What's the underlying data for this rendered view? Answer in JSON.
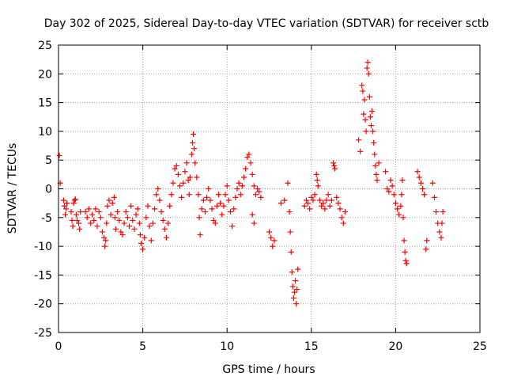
{
  "chart_data": {
    "type": "scatter",
    "title": "Day 302 of 2025, Sidereal Day-to-day VTEC variation (SDTVAR) for receiver sctb",
    "xlabel": "GPS time / hours",
    "ylabel": "SDTVAR / TECUs",
    "xlim": [
      0,
      25
    ],
    "ylim": [
      -25,
      25
    ],
    "xticks": [
      0,
      5,
      10,
      15,
      20,
      25
    ],
    "yticks": [
      -25,
      -20,
      -15,
      -10,
      -5,
      0,
      5,
      10,
      15,
      20,
      25
    ],
    "grid": true,
    "marker": "+",
    "color": "#ff0000",
    "series": [
      {
        "name": "SDTVAR",
        "points": [
          [
            0.05,
            5.8
          ],
          [
            0.1,
            1.0
          ],
          [
            0.3,
            -2.0
          ],
          [
            0.35,
            -3.0
          ],
          [
            0.4,
            -4.5
          ],
          [
            0.45,
            -3.5
          ],
          [
            0.5,
            -2.5
          ],
          [
            0.75,
            -4.0
          ],
          [
            0.8,
            -5.5
          ],
          [
            0.85,
            -6.5
          ],
          [
            0.9,
            -2.5
          ],
          [
            0.95,
            -2.0
          ],
          [
            1.0,
            -1.8
          ],
          [
            1.05,
            -4.5
          ],
          [
            1.1,
            -5.5
          ],
          [
            1.2,
            -6.0
          ],
          [
            1.25,
            -7.0
          ],
          [
            1.3,
            -4.0
          ],
          [
            1.6,
            -4.0
          ],
          [
            1.7,
            -5.0
          ],
          [
            1.8,
            -3.5
          ],
          [
            1.9,
            -6.0
          ],
          [
            2.0,
            -4.5
          ],
          [
            2.1,
            -5.5
          ],
          [
            2.2,
            -3.5
          ],
          [
            2.3,
            -6.5
          ],
          [
            2.4,
            -4.0
          ],
          [
            2.5,
            -5.0
          ],
          [
            2.6,
            -7.5
          ],
          [
            2.7,
            -8.5
          ],
          [
            2.75,
            -10.0
          ],
          [
            2.8,
            -9.0
          ],
          [
            2.85,
            -6.0
          ],
          [
            2.9,
            -3.0
          ],
          [
            3.0,
            -2.0
          ],
          [
            3.1,
            -4.5
          ],
          [
            3.2,
            -2.5
          ],
          [
            3.3,
            -1.5
          ],
          [
            3.35,
            -5.0
          ],
          [
            3.4,
            -7.0
          ],
          [
            3.5,
            -4.0
          ],
          [
            3.6,
            -5.5
          ],
          [
            3.7,
            -7.5
          ],
          [
            3.8,
            -8.0
          ],
          [
            3.9,
            -6.0
          ],
          [
            4.0,
            -4.0
          ],
          [
            4.1,
            -5.0
          ],
          [
            4.2,
            -6.5
          ],
          [
            4.3,
            -3.0
          ],
          [
            4.4,
            -5.5
          ],
          [
            4.5,
            -7.0
          ],
          [
            4.6,
            -4.5
          ],
          [
            4.7,
            -3.5
          ],
          [
            4.8,
            -6.0
          ],
          [
            4.85,
            -8.0
          ],
          [
            4.9,
            -9.5
          ],
          [
            5.0,
            -10.5
          ],
          [
            5.1,
            -8.5
          ],
          [
            5.2,
            -5.0
          ],
          [
            5.3,
            -3.0
          ],
          [
            5.4,
            -6.5
          ],
          [
            5.5,
            -9.0
          ],
          [
            5.6,
            -6.0
          ],
          [
            5.7,
            -3.5
          ],
          [
            5.8,
            -1.0
          ],
          [
            5.9,
            0.0
          ],
          [
            6.0,
            -2.0
          ],
          [
            6.1,
            -4.0
          ],
          [
            6.2,
            -5.5
          ],
          [
            6.3,
            -7.0
          ],
          [
            6.4,
            -8.5
          ],
          [
            6.5,
            -6.0
          ],
          [
            6.6,
            -3.0
          ],
          [
            6.7,
            -1.0
          ],
          [
            6.8,
            1.0
          ],
          [
            6.9,
            3.5
          ],
          [
            7.0,
            4.0
          ],
          [
            7.1,
            2.5
          ],
          [
            7.2,
            0.5
          ],
          [
            7.3,
            -1.5
          ],
          [
            7.4,
            1.0
          ],
          [
            7.5,
            3.0
          ],
          [
            7.6,
            4.5
          ],
          [
            7.7,
            1.5
          ],
          [
            7.75,
            -1.0
          ],
          [
            7.8,
            2.0
          ],
          [
            7.9,
            6.0
          ],
          [
            7.95,
            8.0
          ],
          [
            8.0,
            9.5
          ],
          [
            8.05,
            7.0
          ],
          [
            8.1,
            4.5
          ],
          [
            8.2,
            2.0
          ],
          [
            8.3,
            -1.0
          ],
          [
            8.35,
            -5.0
          ],
          [
            8.4,
            -8.0
          ],
          [
            8.5,
            -3.5
          ],
          [
            8.6,
            -2.0
          ],
          [
            8.7,
            -4.0
          ],
          [
            8.8,
            -1.5
          ],
          [
            8.9,
            0.0
          ],
          [
            9.0,
            -2.0
          ],
          [
            9.1,
            -3.5
          ],
          [
            9.2,
            -5.5
          ],
          [
            9.3,
            -6.0
          ],
          [
            9.4,
            -3.0
          ],
          [
            9.5,
            -1.0
          ],
          [
            9.6,
            -2.5
          ],
          [
            9.7,
            -4.5
          ],
          [
            9.8,
            -3.0
          ],
          [
            9.9,
            -1.0
          ],
          [
            10.0,
            0.5
          ],
          [
            10.1,
            -2.0
          ],
          [
            10.2,
            -4.0
          ],
          [
            10.3,
            -6.5
          ],
          [
            10.4,
            -3.5
          ],
          [
            10.5,
            -1.5
          ],
          [
            10.6,
            0.0
          ],
          [
            10.7,
            1.0
          ],
          [
            10.8,
            -1.0
          ],
          [
            10.9,
            0.5
          ],
          [
            11.0,
            2.0
          ],
          [
            11.1,
            3.5
          ],
          [
            11.2,
            5.5
          ],
          [
            11.3,
            6.0
          ],
          [
            11.4,
            4.5
          ],
          [
            11.5,
            2.5
          ],
          [
            11.6,
            0.5
          ],
          [
            11.7,
            -1.0
          ],
          [
            11.8,
            0.0
          ],
          [
            11.9,
            -0.5
          ],
          [
            12.0,
            -1.5
          ],
          [
            11.5,
            -4.5
          ],
          [
            11.6,
            -6.0
          ],
          [
            12.5,
            -7.5
          ],
          [
            12.6,
            -8.5
          ],
          [
            12.7,
            -10.0
          ],
          [
            12.8,
            -9.0
          ],
          [
            13.2,
            -2.5
          ],
          [
            13.4,
            -2.0
          ],
          [
            13.6,
            1.0
          ],
          [
            13.7,
            -4.0
          ],
          [
            13.75,
            -7.5
          ],
          [
            13.8,
            -11.0
          ],
          [
            13.85,
            -14.5
          ],
          [
            13.9,
            -17.0
          ],
          [
            13.95,
            -19.0
          ],
          [
            14.0,
            -18.0
          ],
          [
            14.05,
            -16.0
          ],
          [
            14.1,
            -20.0
          ],
          [
            14.15,
            -17.5
          ],
          [
            14.2,
            -14.0
          ],
          [
            14.6,
            -3.0
          ],
          [
            14.7,
            -2.0
          ],
          [
            14.8,
            -2.5
          ],
          [
            14.9,
            -3.5
          ],
          [
            15.0,
            -1.5
          ],
          [
            15.1,
            -2.0
          ],
          [
            15.2,
            -1.0
          ],
          [
            15.3,
            2.5
          ],
          [
            15.35,
            1.5
          ],
          [
            15.4,
            0.5
          ],
          [
            15.5,
            -2.0
          ],
          [
            15.6,
            -3.0
          ],
          [
            15.7,
            -2.5
          ],
          [
            15.8,
            -3.5
          ],
          [
            15.9,
            -2.0
          ],
          [
            16.0,
            -1.0
          ],
          [
            16.1,
            -3.0
          ],
          [
            16.2,
            -2.0
          ],
          [
            16.3,
            4.5
          ],
          [
            16.35,
            4.0
          ],
          [
            16.4,
            3.5
          ],
          [
            16.5,
            -1.5
          ],
          [
            16.6,
            -2.5
          ],
          [
            16.7,
            -3.5
          ],
          [
            16.8,
            -5.0
          ],
          [
            16.9,
            -6.0
          ],
          [
            17.0,
            -4.0
          ],
          [
            17.8,
            8.5
          ],
          [
            17.9,
            6.5
          ],
          [
            18.0,
            18.0
          ],
          [
            18.05,
            17.0
          ],
          [
            18.1,
            13.0
          ],
          [
            18.15,
            15.5
          ],
          [
            18.2,
            12.0
          ],
          [
            18.25,
            10.0
          ],
          [
            18.3,
            21.0
          ],
          [
            18.35,
            22.0
          ],
          [
            18.4,
            20.0
          ],
          [
            18.45,
            16.0
          ],
          [
            18.5,
            12.5
          ],
          [
            18.55,
            11.0
          ],
          [
            18.6,
            13.5
          ],
          [
            18.65,
            10.0
          ],
          [
            18.7,
            8.0
          ],
          [
            18.75,
            6.0
          ],
          [
            18.8,
            4.0
          ],
          [
            18.85,
            2.5
          ],
          [
            18.9,
            1.5
          ],
          [
            19.0,
            4.5
          ],
          [
            19.4,
            3.0
          ],
          [
            19.5,
            0.0
          ],
          [
            19.6,
            -0.5
          ],
          [
            19.7,
            1.5
          ],
          [
            19.8,
            0.5
          ],
          [
            19.9,
            -1.0
          ],
          [
            20.0,
            -2.5
          ],
          [
            20.1,
            -3.5
          ],
          [
            20.2,
            -4.5
          ],
          [
            20.3,
            -3.0
          ],
          [
            20.35,
            -1.0
          ],
          [
            20.4,
            1.5
          ],
          [
            20.45,
            -5.0
          ],
          [
            20.5,
            -9.0
          ],
          [
            20.55,
            -11.0
          ],
          [
            20.6,
            -12.5
          ],
          [
            20.65,
            -13.0
          ],
          [
            21.3,
            3.0
          ],
          [
            21.4,
            2.0
          ],
          [
            21.5,
            1.0
          ],
          [
            21.6,
            0.0
          ],
          [
            21.7,
            -1.0
          ],
          [
            21.8,
            -10.5
          ],
          [
            21.85,
            -9.0
          ],
          [
            22.2,
            1.0
          ],
          [
            22.3,
            -1.5
          ],
          [
            22.4,
            -4.0
          ],
          [
            22.5,
            -6.0
          ],
          [
            22.6,
            -7.5
          ],
          [
            22.7,
            -8.5
          ],
          [
            22.75,
            -6.0
          ],
          [
            22.8,
            -4.0
          ]
        ]
      }
    ]
  }
}
